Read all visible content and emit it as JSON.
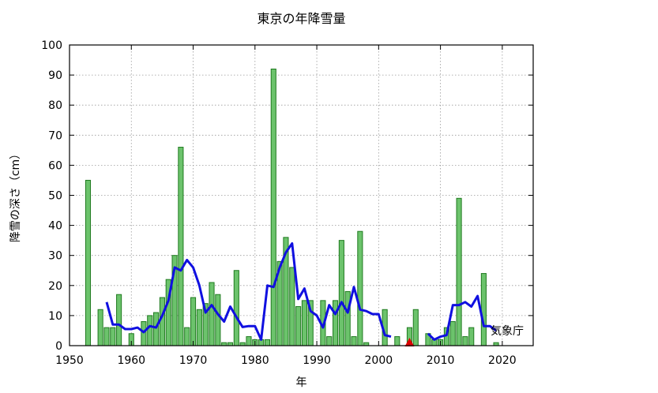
{
  "chart_data": {
    "type": "bar",
    "title": "東京の年降雪量",
    "xlabel": "年",
    "ylabel": "降雪の深さ（cm）",
    "credit": "気象庁",
    "xlim": [
      1950,
      2025
    ],
    "ylim": [
      0,
      100
    ],
    "xticks": [
      1950,
      1960,
      1970,
      1980,
      1990,
      2000,
      2010,
      2020
    ],
    "yticks": [
      0,
      10,
      20,
      30,
      40,
      50,
      60,
      70,
      80,
      90,
      100
    ],
    "grid": true,
    "colors": {
      "bar_fill": "#6cc36c",
      "bar_edge": "#1f7a1f",
      "line": "#1010e0",
      "marker": "#dd0000"
    },
    "series": [
      {
        "kind": "bar",
        "x": [
          1953,
          1955,
          1956,
          1957,
          1958,
          1960,
          1962,
          1963,
          1964,
          1965,
          1966,
          1967,
          1968,
          1969,
          1970,
          1971,
          1972,
          1973,
          1974,
          1975,
          1976,
          1977,
          1978,
          1979,
          1980,
          1981,
          1982,
          1983,
          1984,
          1985,
          1986,
          1987,
          1988,
          1989,
          1991,
          1992,
          1993,
          1994,
          1995,
          1996,
          1997,
          1998,
          2001,
          2003,
          2005,
          2006,
          2008,
          2009,
          2010,
          2011,
          2012,
          2013,
          2014,
          2015,
          2017,
          2019
        ],
        "values": [
          55,
          12,
          6,
          6,
          17,
          4,
          8,
          10,
          11,
          16,
          22,
          30,
          66,
          6,
          16,
          12,
          14,
          21,
          17,
          1,
          1,
          25,
          1,
          3,
          2,
          2,
          2,
          92,
          28,
          36,
          26,
          13,
          15,
          15,
          15,
          3,
          15,
          35,
          18,
          3,
          38,
          1,
          12,
          3,
          6,
          12,
          4,
          2,
          2,
          6,
          8,
          49,
          3,
          6,
          24,
          1
        ]
      },
      {
        "kind": "line",
        "segments": [
          {
            "x": [
              1956,
              1957,
              1958,
              1959,
              1960,
              1961,
              1962,
              1963,
              1964,
              1965,
              1966,
              1967,
              1968,
              1969,
              1970,
              1971,
              1972,
              1973,
              1974,
              1975,
              1976,
              1977,
              1978,
              1979,
              1980,
              1981,
              1982,
              1983,
              1984,
              1985,
              1986,
              1987,
              1988,
              1989,
              1990,
              1991,
              1992,
              1993,
              1994,
              1995,
              1996,
              1997,
              1998,
              1999,
              2000,
              2001,
              2002
            ],
            "y": [
              14.5,
              7,
              7,
              5.5,
              5.5,
              6,
              4.5,
              6.5,
              6,
              10,
              15,
              26,
              25,
              28.5,
              26,
              20,
              11,
              13.5,
              10.5,
              8,
              13,
              9.5,
              6.2,
              6.5,
              6.5,
              2,
              20,
              19.5,
              26,
              31,
              34,
              15.5,
              19,
              11.5,
              10,
              6,
              13.5,
              10.5,
              14.5,
              11,
              19.5,
              12,
              11.5,
              10.5,
              10.5,
              3.5,
              3
            ]
          },
          {
            "x": [
              2008,
              2009,
              2010,
              2011,
              2012,
              2013,
              2014,
              2015,
              2016,
              2017,
              2018,
              2019
            ],
            "y": [
              4,
              2,
              3,
              3.5,
              13.5,
              13.5,
              14.5,
              13,
              16.5,
              6.5,
              6.5,
              5
            ]
          }
        ]
      },
      {
        "kind": "marker",
        "x": [
          2005
        ],
        "y": [
          0
        ]
      }
    ]
  }
}
